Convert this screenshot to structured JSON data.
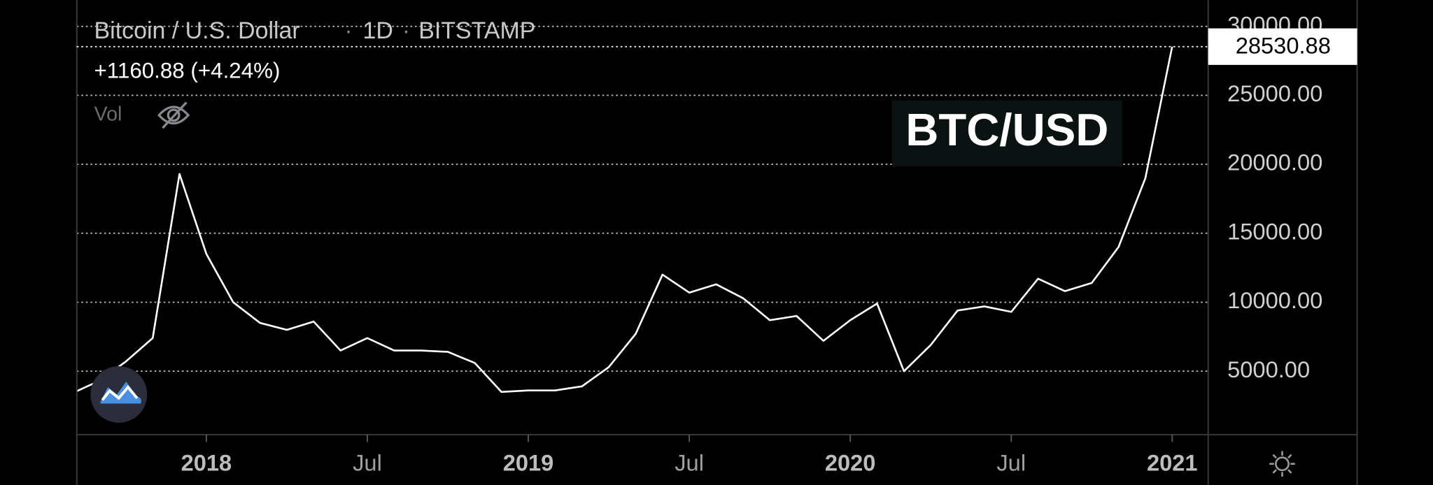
{
  "chart_data": {
    "type": "line",
    "title": "Bitcoin / U.S. Dollar",
    "interval": "1D",
    "exchange": "BITSTAMP",
    "change": "+1160.88 (+4.24%)",
    "volume_label": "Vol",
    "annotation": "BTC/USD",
    "last_price": 28530.88,
    "last_price_label": "28530.88",
    "color": "#ffffff",
    "x": [
      "2017-08",
      "2017-09",
      "2017-10",
      "2017-11",
      "2017-12",
      "2018-01",
      "2018-02",
      "2018-03",
      "2018-04",
      "2018-05",
      "2018-06",
      "2018-07",
      "2018-08",
      "2018-09",
      "2018-10",
      "2018-11",
      "2018-12",
      "2019-01",
      "2019-02",
      "2019-03",
      "2019-04",
      "2019-05",
      "2019-06",
      "2019-07",
      "2019-08",
      "2019-09",
      "2019-10",
      "2019-11",
      "2019-12",
      "2020-01",
      "2020-02",
      "2020-03",
      "2020-04",
      "2020-05",
      "2020-06",
      "2020-07",
      "2020-08",
      "2020-09",
      "2020-10",
      "2020-11",
      "2020-12",
      "2021-01"
    ],
    "values": [
      3400,
      4300,
      5700,
      7400,
      19300,
      13500,
      10000,
      8500,
      8000,
      8600,
      6500,
      7400,
      6500,
      6500,
      6400,
      5600,
      3500,
      3600,
      3600,
      3900,
      5300,
      7700,
      12000,
      10700,
      11300,
      10300,
      8700,
      9000,
      7200,
      8700,
      9900,
      5000,
      6900,
      9400,
      9700,
      9300,
      11700,
      10800,
      11400,
      14000,
      19000,
      28530.88
    ],
    "xlim": [
      "2017-08",
      "2021-02"
    ],
    "xticks": [
      {
        "value": "2018-01",
        "label": "2018"
      },
      {
        "value": "2018-07",
        "label": "Jul"
      },
      {
        "value": "2019-01",
        "label": "2019"
      },
      {
        "value": "2019-07",
        "label": "Jul"
      },
      {
        "value": "2020-01",
        "label": "2020"
      },
      {
        "value": "2020-07",
        "label": "Jul"
      },
      {
        "value": "2021-01",
        "label": "2021"
      }
    ],
    "ylim": [
      400,
      31900
    ],
    "yticks": [
      {
        "value": 5000,
        "label": "5000.00"
      },
      {
        "value": 10000,
        "label": "10000.00"
      },
      {
        "value": 15000,
        "label": "15000.00"
      },
      {
        "value": 20000,
        "label": "20000.00"
      },
      {
        "value": 25000,
        "label": "25000.00"
      },
      {
        "value": 30000,
        "label": "30000.00"
      }
    ],
    "grid": true
  }
}
